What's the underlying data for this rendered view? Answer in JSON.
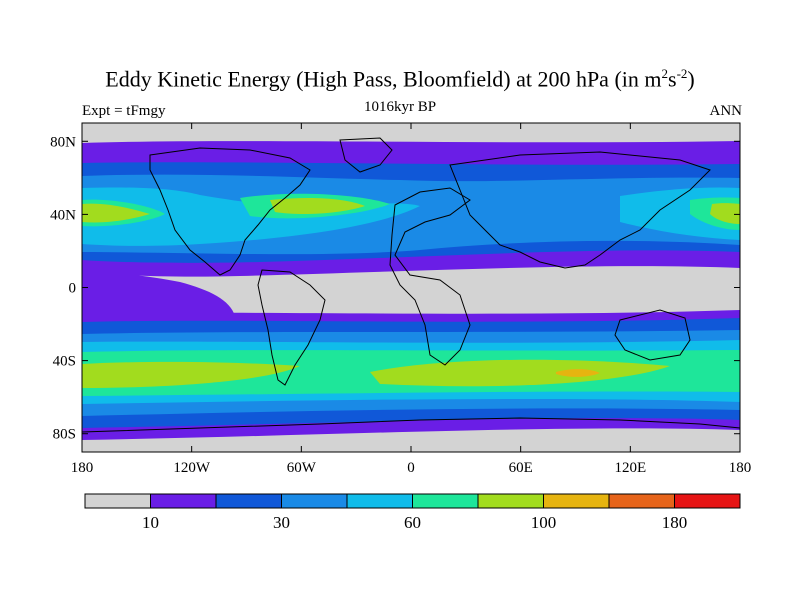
{
  "title": {
    "main": "Eddy Kinetic Energy (High Pass, Bloomfield) at 200 hPa (in m",
    "sup1": "2",
    "mid": "s",
    "sup2": "-2",
    "end": ")"
  },
  "subtitle": "1016kyr BP",
  "left_label": "Expt = tFmgy",
  "right_label": "ANN",
  "axes": {
    "lat_ticks": [
      {
        "value": 80,
        "label": "80N"
      },
      {
        "value": 40,
        "label": "40N"
      },
      {
        "value": 0,
        "label": "0"
      },
      {
        "value": -40,
        "label": "40S"
      },
      {
        "value": -80,
        "label": "80S"
      }
    ],
    "lon_ticks": [
      {
        "value": -180,
        "label": "180"
      },
      {
        "value": -120,
        "label": "120W"
      },
      {
        "value": -60,
        "label": "60W"
      },
      {
        "value": 0,
        "label": "0"
      },
      {
        "value": 60,
        "label": "60E"
      },
      {
        "value": 120,
        "label": "120E"
      },
      {
        "value": 180,
        "label": "180"
      }
    ],
    "lon_range": [
      -180,
      180
    ],
    "lat_range": [
      -90,
      90
    ]
  },
  "colorbar": {
    "colors": [
      "#d3d3d3",
      "#6a1ee6",
      "#1058d8",
      "#1a8ae6",
      "#10bcea",
      "#1ee69a",
      "#a2dc1e",
      "#e6b410",
      "#e6641a",
      "#e61414"
    ],
    "labels": [
      "10",
      "30",
      "60",
      "100",
      "180"
    ],
    "label_after_box": [
      1,
      3,
      5,
      7,
      9
    ]
  },
  "colors": {
    "missing": "#d3d3d3",
    "coast": "#000000"
  }
}
